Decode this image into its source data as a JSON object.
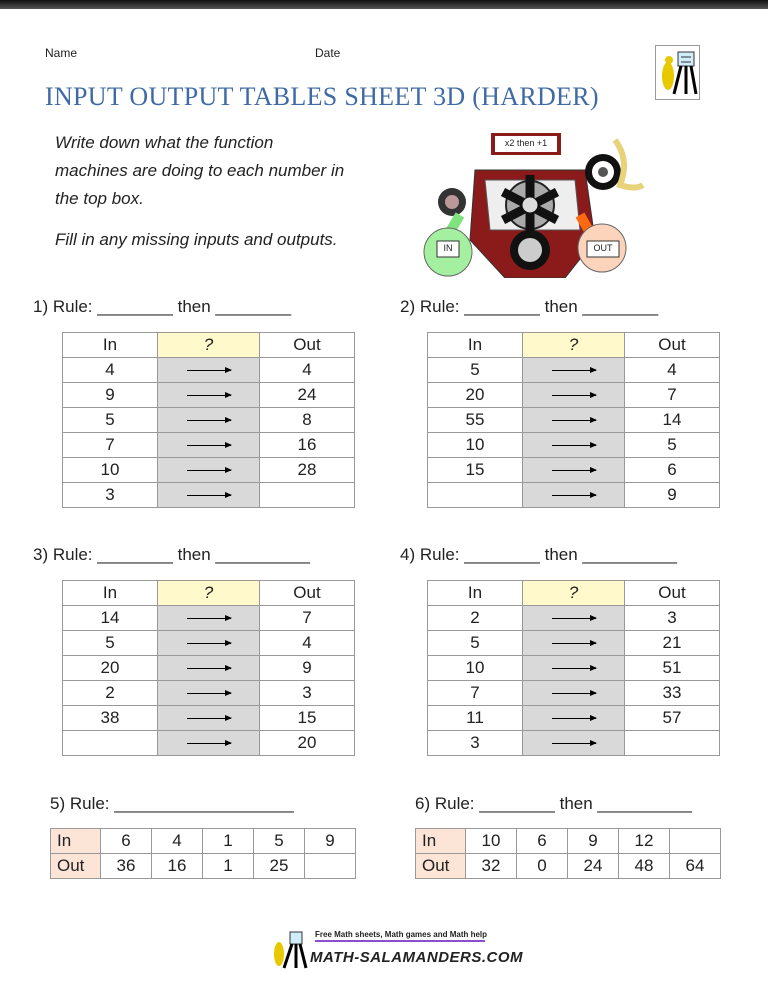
{
  "header": {
    "name_label": "Name",
    "date_label": "Date",
    "title": "INPUT OUTPUT TABLES SHEET 3D (HARDER)"
  },
  "instructions": {
    "line1": "Write down what the function",
    "line2": "machines are doing to each number in",
    "line3": "the top box.",
    "line4": "Fill in any missing inputs and outputs."
  },
  "machine": {
    "rule": "x2 then +1",
    "in_label": "IN",
    "out_label": "OUT"
  },
  "vertical_tables": [
    {
      "heading": "1) Rule: ________ then ________",
      "in_header": "In",
      "mid_header": "?",
      "out_header": "Out",
      "rows": [
        [
          "4",
          "4"
        ],
        [
          "9",
          "24"
        ],
        [
          "5",
          "8"
        ],
        [
          "7",
          "16"
        ],
        [
          "10",
          "28"
        ],
        [
          "3",
          ""
        ]
      ]
    },
    {
      "heading": "2) Rule: ________ then ________",
      "in_header": "In",
      "mid_header": "?",
      "out_header": "Out",
      "rows": [
        [
          "5",
          "4"
        ],
        [
          "20",
          "7"
        ],
        [
          "55",
          "14"
        ],
        [
          "10",
          "5"
        ],
        [
          "15",
          "6"
        ],
        [
          "",
          "9"
        ]
      ]
    },
    {
      "heading": "3) Rule: ________ then __________",
      "in_header": "In",
      "mid_header": "?",
      "out_header": "Out",
      "rows": [
        [
          "14",
          "7"
        ],
        [
          "5",
          "4"
        ],
        [
          "20",
          "9"
        ],
        [
          "2",
          "3"
        ],
        [
          "38",
          "15"
        ],
        [
          "",
          "20"
        ]
      ]
    },
    {
      "heading": "4) Rule: ________ then __________",
      "in_header": "In",
      "mid_header": "?",
      "out_header": "Out",
      "rows": [
        [
          "2",
          "3"
        ],
        [
          "5",
          "21"
        ],
        [
          "10",
          "51"
        ],
        [
          "7",
          "33"
        ],
        [
          "11",
          "57"
        ],
        [
          "3",
          ""
        ]
      ]
    }
  ],
  "horizontal_tables": [
    {
      "heading": "5) Rule: ___________________",
      "in_label": "In",
      "out_label": "Out",
      "in": [
        "6",
        "4",
        "1",
        "5",
        "9"
      ],
      "out": [
        "36",
        "16",
        "1",
        "25",
        ""
      ]
    },
    {
      "heading": "6) Rule: ________ then __________",
      "in_label": "In",
      "out_label": "Out",
      "in": [
        "10",
        "6",
        "9",
        "12",
        ""
      ],
      "out": [
        "32",
        "0",
        "24",
        "48",
        "64"
      ]
    }
  ],
  "footer": {
    "tagline": "Free Math sheets, Math games and Math help",
    "brand": "MATH-SALAMANDERS.COM"
  }
}
